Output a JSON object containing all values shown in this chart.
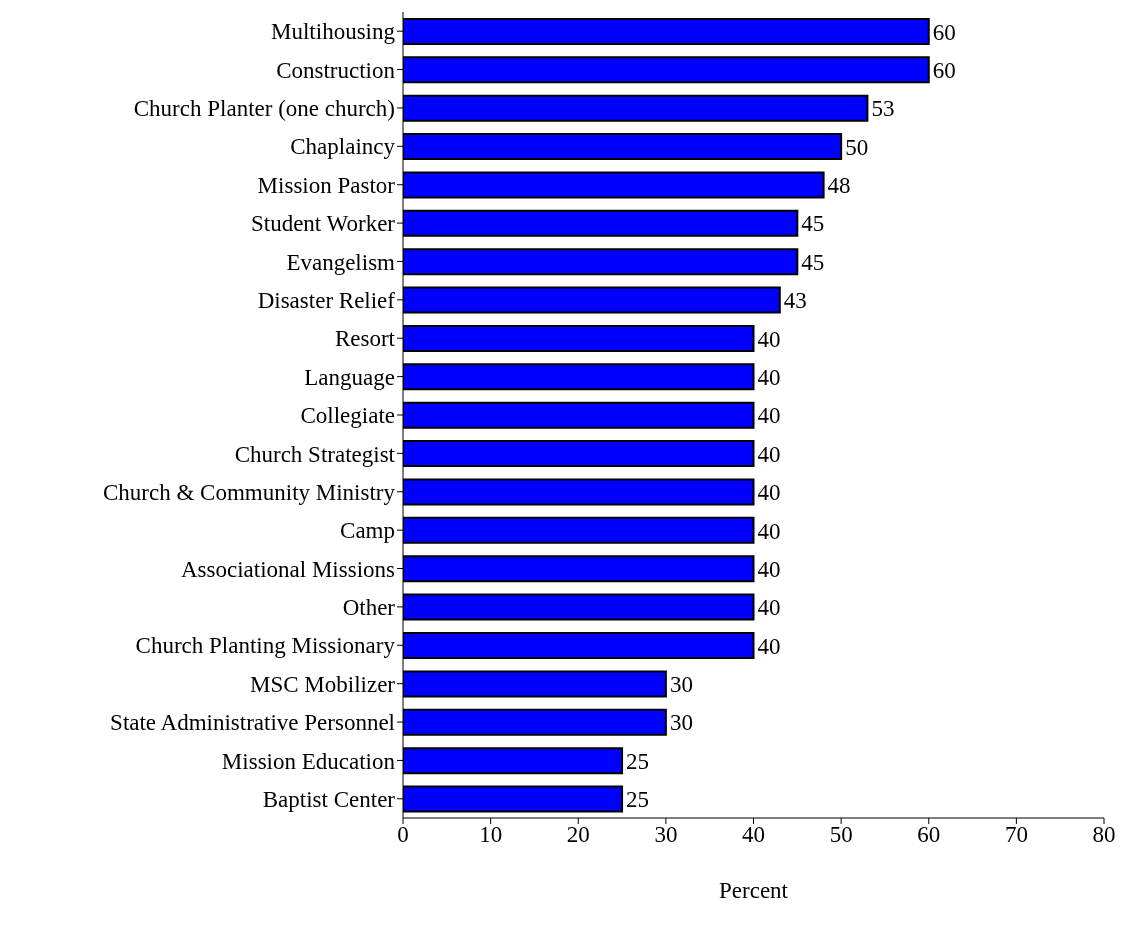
{
  "chart_data": {
    "type": "bar",
    "orientation": "horizontal",
    "xlabel": "Percent",
    "categories": [
      "Multihousing",
      "Construction",
      "Church Planter (one church)",
      "Chaplaincy",
      "Mission Pastor",
      "Student Worker",
      "Evangelism",
      "Disaster Relief",
      "Resort",
      "Language",
      "Collegiate",
      "Church Strategist",
      "Church & Community Ministry",
      "Camp",
      "Associational Missions",
      "Other",
      "Church Planting Missionary",
      "MSC Mobilizer",
      "State Administrative Personnel",
      "Mission Education",
      "Baptist Center"
    ],
    "values": [
      60,
      60,
      53,
      50,
      48,
      45,
      45,
      43,
      40,
      40,
      40,
      40,
      40,
      40,
      40,
      40,
      40,
      30,
      30,
      25,
      25
    ],
    "color": "#0000ff",
    "xlim": [
      0,
      80
    ],
    "xticks": [
      0,
      10,
      20,
      30,
      40,
      50,
      60,
      70,
      80
    ],
    "data_labels": true
  }
}
